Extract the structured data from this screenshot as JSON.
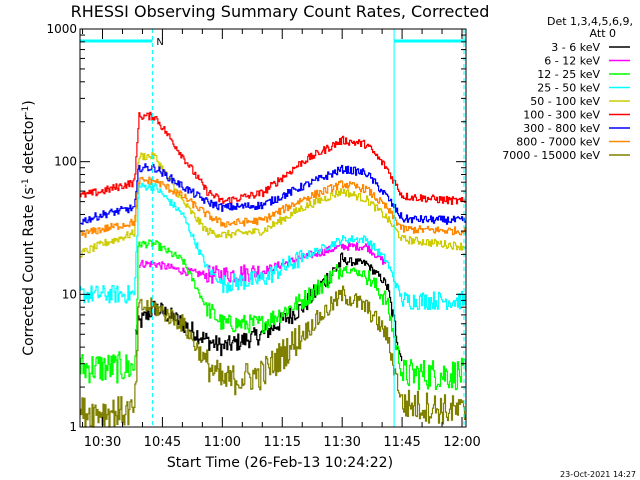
{
  "chart_data": {
    "type": "line",
    "title": "RHESSI Observing Summary Count Rates, Corrected",
    "xlabel": "Start Time (26-Feb-13 10:24:22)",
    "ylabel": "Corrected Count Rate (s⁻¹ detector⁻¹)",
    "ylabel_parts": [
      "Corrected Count Rate (s",
      "-1",
      " detector",
      "-1",
      ")"
    ],
    "y_scale": "log",
    "ylim": [
      1,
      1000
    ],
    "y_ticks": [
      {
        "value": 1,
        "label": "1"
      },
      {
        "value": 10,
        "label": "10"
      },
      {
        "value": 100,
        "label": "100"
      },
      {
        "value": 1000,
        "label": "1000"
      }
    ],
    "xlim": [
      "10:24:22",
      "12:01:00"
    ],
    "x_ticks": [
      "10:30",
      "10:45",
      "11:00",
      "11:15",
      "11:30",
      "11:45",
      "12:00"
    ],
    "legend_header": [
      "Det 1,3,4,5,6,9,",
      "Att 0"
    ],
    "legend_position": "right",
    "grid": false,
    "date_stamp": "23-Oct-2021 14:27",
    "annotations": [
      {
        "type": "bar",
        "x_start": "10:24:22",
        "x_end": "10:42:30",
        "color": "#00ffff"
      },
      {
        "type": "bar",
        "x_start": "11:43:00",
        "x_end": "12:01:00",
        "color": "#00ffff"
      },
      {
        "type": "text",
        "label": "N",
        "x": "10:43:30",
        "color": "#00ffff"
      },
      {
        "type": "vline",
        "x": "10:42:30",
        "style": "dashed",
        "color": "#00ffff"
      },
      {
        "type": "vline",
        "x": "11:43:00",
        "style": "solid",
        "color": "#00ffff"
      },
      {
        "type": "vline",
        "x": "12:00:30",
        "style": "dashed",
        "color": "#00ffff"
      }
    ],
    "x": [
      "10:24",
      "10:30",
      "10:38",
      "10:39",
      "10:43",
      "10:50",
      "10:56",
      "11:00",
      "11:10",
      "11:20",
      "11:30",
      "11:36",
      "11:41",
      "11:45",
      "12:00"
    ],
    "series": [
      {
        "name": "3 - 6 keV",
        "color": "#000000",
        "values": [
          null,
          null,
          5,
          6,
          8,
          6,
          4.5,
          4,
          5,
          8,
          18,
          17,
          12,
          3,
          null
        ]
      },
      {
        "name": "6 - 12 keV",
        "color": "#ff00ff",
        "values": [
          null,
          null,
          null,
          17,
          17,
          15,
          14,
          14,
          15,
          19,
          23,
          23,
          17,
          null,
          null
        ]
      },
      {
        "name": "12 - 25 keV",
        "color": "#00ff00",
        "values": [
          2.8,
          2.8,
          2.8,
          24,
          24,
          18,
          8,
          6,
          6,
          9,
          16,
          14,
          9,
          2.5,
          2.5
        ]
      },
      {
        "name": "25 - 50 keV",
        "color": "#00ffff",
        "values": [
          10,
          10,
          10,
          65,
          65,
          40,
          16,
          12,
          13,
          19,
          26,
          26,
          18,
          9,
          9
        ]
      },
      {
        "name": "50 - 100 keV",
        "color": "#cccc00",
        "values": [
          20,
          24,
          29,
          110,
          110,
          50,
          30,
          28,
          30,
          45,
          60,
          52,
          38,
          26,
          23
        ]
      },
      {
        "name": "100 - 300 keV",
        "color": "#ff0000",
        "values": [
          55,
          60,
          70,
          220,
          220,
          110,
          60,
          50,
          58,
          100,
          145,
          135,
          90,
          55,
          50
        ]
      },
      {
        "name": "300 - 800 keV",
        "color": "#0000ff",
        "values": [
          35,
          40,
          45,
          90,
          90,
          65,
          50,
          45,
          47,
          65,
          88,
          82,
          55,
          37,
          36
        ]
      },
      {
        "name": "800 - 7000 keV",
        "color": "#ff8800",
        "values": [
          28,
          31,
          35,
          72,
          72,
          55,
          40,
          34,
          36,
          52,
          68,
          62,
          45,
          31,
          30
        ]
      },
      {
        "name": "7000 - 15000 keV",
        "color": "#808000",
        "values": [
          1.3,
          1.3,
          1.3,
          8,
          8,
          6,
          3,
          2.2,
          2.5,
          5,
          10,
          8,
          5,
          1.5,
          1.3
        ]
      }
    ]
  }
}
